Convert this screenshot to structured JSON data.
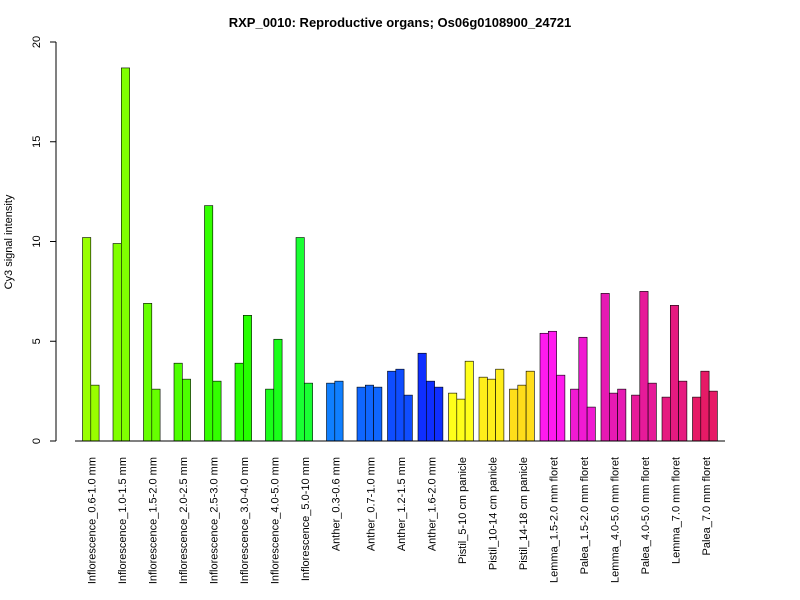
{
  "chart_data": {
    "type": "bar",
    "title": "RXP_0010: Reproductive organs; Os06g0108900_24721",
    "xlabel": "",
    "ylabel": "Cy3 signal intensity",
    "ylim": [
      0,
      20
    ],
    "yticks": [
      0,
      5,
      10,
      15,
      20
    ],
    "grid": false,
    "legend": "none",
    "groups": [
      {
        "label": "Inflorescence_0.6-1.0 mm",
        "color": "#99ff00",
        "values": [
          10.2,
          2.8
        ]
      },
      {
        "label": "Inflorescence_1.0-1.5 mm",
        "color": "#80ff00",
        "values": [
          9.9,
          18.7
        ]
      },
      {
        "label": "Inflorescence_1.5-2.0 mm",
        "color": "#66ff00",
        "values": [
          6.9,
          2.6
        ]
      },
      {
        "label": "Inflorescence_2.0-2.5 mm",
        "color": "#4dff00",
        "values": [
          3.9,
          3.1
        ]
      },
      {
        "label": "Inflorescence_2.5-3.0 mm",
        "color": "#33ff00",
        "values": [
          11.8,
          3.0
        ]
      },
      {
        "label": "Inflorescence_3.0-4.0 mm",
        "color": "#26ff00",
        "values": [
          3.9,
          6.3
        ]
      },
      {
        "label": "Inflorescence_4.0-5.0 mm",
        "color": "#1aff1a",
        "values": [
          2.6,
          5.1
        ]
      },
      {
        "label": "Inflorescence_5.0-10 mm",
        "color": "#19ff33",
        "values": [
          10.2,
          2.9
        ]
      },
      {
        "label": "Anther_0.3-0.6 mm",
        "color": "#0f7fff",
        "values": [
          2.9,
          3.0
        ]
      },
      {
        "label": "Anther_0.7-1.0 mm",
        "color": "#0f66ff",
        "values": [
          2.7,
          2.8,
          2.7
        ]
      },
      {
        "label": "Anther_1.2-1.5 mm",
        "color": "#0f4dff",
        "values": [
          3.5,
          3.6,
          2.3
        ]
      },
      {
        "label": "Anther_1.6-2.0 mm",
        "color": "#0f2fff",
        "values": [
          4.4,
          3.0,
          2.7
        ]
      },
      {
        "label": "Pistil_5-10 cm panicle",
        "color": "#ffff1a",
        "values": [
          2.4,
          2.1,
          4.0
        ]
      },
      {
        "label": "Pistil_10-14 cm panicle",
        "color": "#ffee1a",
        "values": [
          3.2,
          3.1,
          3.6
        ]
      },
      {
        "label": "Pistil_14-18 cm panicle",
        "color": "#ffdd1a",
        "values": [
          2.6,
          2.8,
          3.5
        ]
      },
      {
        "label": "Lemma_1.5-2.0 mm floret",
        "color": "#ff1aee",
        "values": [
          5.4,
          5.5,
          3.3
        ]
      },
      {
        "label": "Palea_1.5-2.0 mm floret",
        "color": "#f01ad2",
        "values": [
          2.6,
          5.2,
          1.7
        ]
      },
      {
        "label": "Lemma_4.0-5.0 mm floret",
        "color": "#e61ab3",
        "values": [
          7.4,
          2.4,
          2.6
        ]
      },
      {
        "label": "Palea_4.0-5.0 mm floret",
        "color": "#e61a99",
        "values": [
          2.3,
          7.5,
          2.9
        ]
      },
      {
        "label": "Lemma_7.0 mm floret",
        "color": "#e61a80",
        "values": [
          2.2,
          6.8,
          3.0
        ]
      },
      {
        "label": "Palea_7.0 mm floret",
        "color": "#e61a66",
        "values": [
          2.2,
          3.5,
          2.5
        ]
      }
    ]
  }
}
